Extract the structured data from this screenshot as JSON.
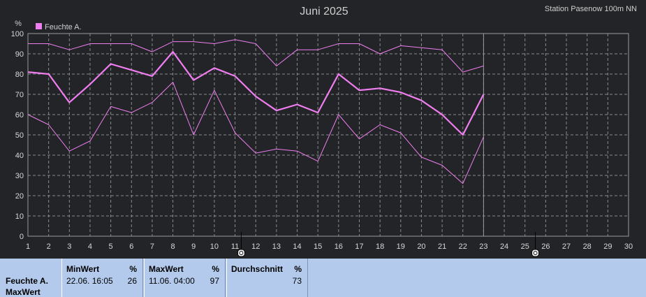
{
  "header": {
    "title": "Juni 2025",
    "station": "Station Pasenow 100m NN"
  },
  "colors": {
    "background": "#222427",
    "plot_border": "#9a9a9a",
    "grid": "#8a8a8a",
    "series": "#f07ef0",
    "text": "#d8d8d8",
    "stats_bg": "#b3caec"
  },
  "chart_data": {
    "type": "line",
    "title": "Juni 2025",
    "ylabel": "%",
    "ylim": [
      0,
      100
    ],
    "yticks": [
      0,
      10,
      20,
      30,
      40,
      50,
      60,
      70,
      80,
      90,
      100
    ],
    "xlim": [
      1,
      30
    ],
    "x_categories": [
      "1",
      "2",
      "3",
      "4",
      "5",
      "6",
      "7",
      "8",
      "9",
      "10",
      "11",
      "12",
      "13",
      "14",
      "15",
      "16",
      "17",
      "18",
      "19",
      "20",
      "21",
      "22",
      "23",
      "24",
      "25",
      "26",
      "27",
      "28",
      "29",
      "30"
    ],
    "grid": true,
    "legend": {
      "position": "top-left",
      "entries": [
        "Feuchte A."
      ]
    },
    "current_day_marker": 23,
    "series": [
      {
        "name": "Feuchte A.",
        "role": "average",
        "x": [
          1,
          2,
          3,
          4,
          5,
          6,
          7,
          8,
          9,
          10,
          11,
          12,
          13,
          14,
          15,
          16,
          17,
          18,
          19,
          20,
          21,
          22,
          23
        ],
        "values": [
          81,
          80,
          66,
          75,
          85,
          82,
          79,
          91,
          77,
          83,
          79,
          69,
          62,
          65,
          61,
          80,
          72,
          73,
          71,
          67,
          60,
          50,
          70
        ]
      },
      {
        "role": "max",
        "x": [
          1,
          2,
          3,
          4,
          5,
          6,
          7,
          8,
          9,
          10,
          11,
          12,
          13,
          14,
          15,
          16,
          17,
          18,
          19,
          20,
          21,
          22,
          23
        ],
        "values": [
          95,
          95,
          92,
          95,
          95,
          95,
          91,
          96,
          96,
          95,
          97,
          95,
          84,
          92,
          92,
          95,
          95,
          90,
          94,
          93,
          92,
          81,
          84
        ]
      },
      {
        "role": "min",
        "x": [
          1,
          2,
          3,
          4,
          5,
          6,
          7,
          8,
          9,
          10,
          11,
          12,
          13,
          14,
          15,
          16,
          17,
          18,
          19,
          20,
          21,
          22,
          23
        ],
        "values": [
          60,
          55,
          42,
          47,
          64,
          61,
          66,
          76,
          50,
          72,
          51,
          41,
          43,
          42,
          37,
          60,
          48,
          55,
          51,
          39,
          35,
          26,
          49
        ]
      }
    ]
  },
  "stats": {
    "series_label": "Feuchte A.",
    "row_label": "MaxWert",
    "min": {
      "header": "MinWert",
      "unit": "%",
      "date": "22.06.  16:05",
      "value": "26"
    },
    "max": {
      "header": "MaxWert",
      "unit": "%",
      "date": "11.06.  04:00",
      "value": "97"
    },
    "avg": {
      "header": "Durchschnitt",
      "unit": "%",
      "date": "",
      "value": "73"
    }
  }
}
